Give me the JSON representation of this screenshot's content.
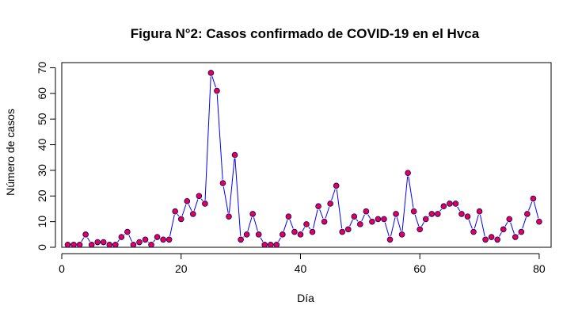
{
  "chart_data": {
    "type": "line",
    "title": "Figura N°2: Casos confirmado de COVID-19 en el Hvca",
    "xlabel": "Día",
    "ylabel": "Número de casos",
    "xlim": [
      0,
      82
    ],
    "ylim": [
      0,
      72
    ],
    "x_ticks": [
      0,
      20,
      40,
      60,
      80
    ],
    "y_ticks": [
      0,
      10,
      20,
      30,
      40,
      50,
      60,
      70
    ],
    "grid": false,
    "series": [
      {
        "x": [
          1,
          2,
          3,
          4,
          5,
          6,
          7,
          8,
          9,
          10,
          11,
          12,
          13,
          14,
          15,
          16,
          17,
          18,
          19,
          20,
          21,
          22,
          23,
          24,
          25,
          26,
          27,
          28,
          29,
          30,
          31,
          32,
          33,
          34,
          35,
          36,
          37,
          38,
          39,
          40,
          41,
          42,
          43,
          44,
          45,
          46,
          47,
          48,
          49,
          50,
          51,
          52,
          53,
          54,
          55,
          56,
          57,
          58,
          59,
          60,
          61,
          62,
          63,
          64,
          65,
          66,
          67,
          68,
          69,
          70,
          71,
          72,
          73,
          74,
          75,
          76,
          77,
          78,
          79,
          80
        ],
        "y": [
          1,
          1,
          1,
          5,
          1,
          2,
          2,
          1,
          1,
          4,
          6,
          1,
          2,
          3,
          1,
          4,
          3,
          3,
          14,
          11,
          18,
          13,
          20,
          17,
          68,
          61,
          25,
          12,
          36,
          3,
          5,
          13,
          5,
          1,
          1,
          1,
          5,
          12,
          6,
          5,
          9,
          6,
          16,
          10,
          17,
          24,
          6,
          7,
          12,
          9,
          14,
          10,
          11,
          11,
          3,
          13,
          5,
          29,
          14,
          7,
          11,
          13,
          13,
          16,
          17,
          17,
          13,
          12,
          6,
          14,
          3,
          4,
          3,
          7,
          11,
          4,
          6,
          13,
          19,
          10
        ]
      }
    ],
    "colors": {
      "line": "#0000ff",
      "point_fill": "#e6004c",
      "point_border": "#000080"
    }
  }
}
